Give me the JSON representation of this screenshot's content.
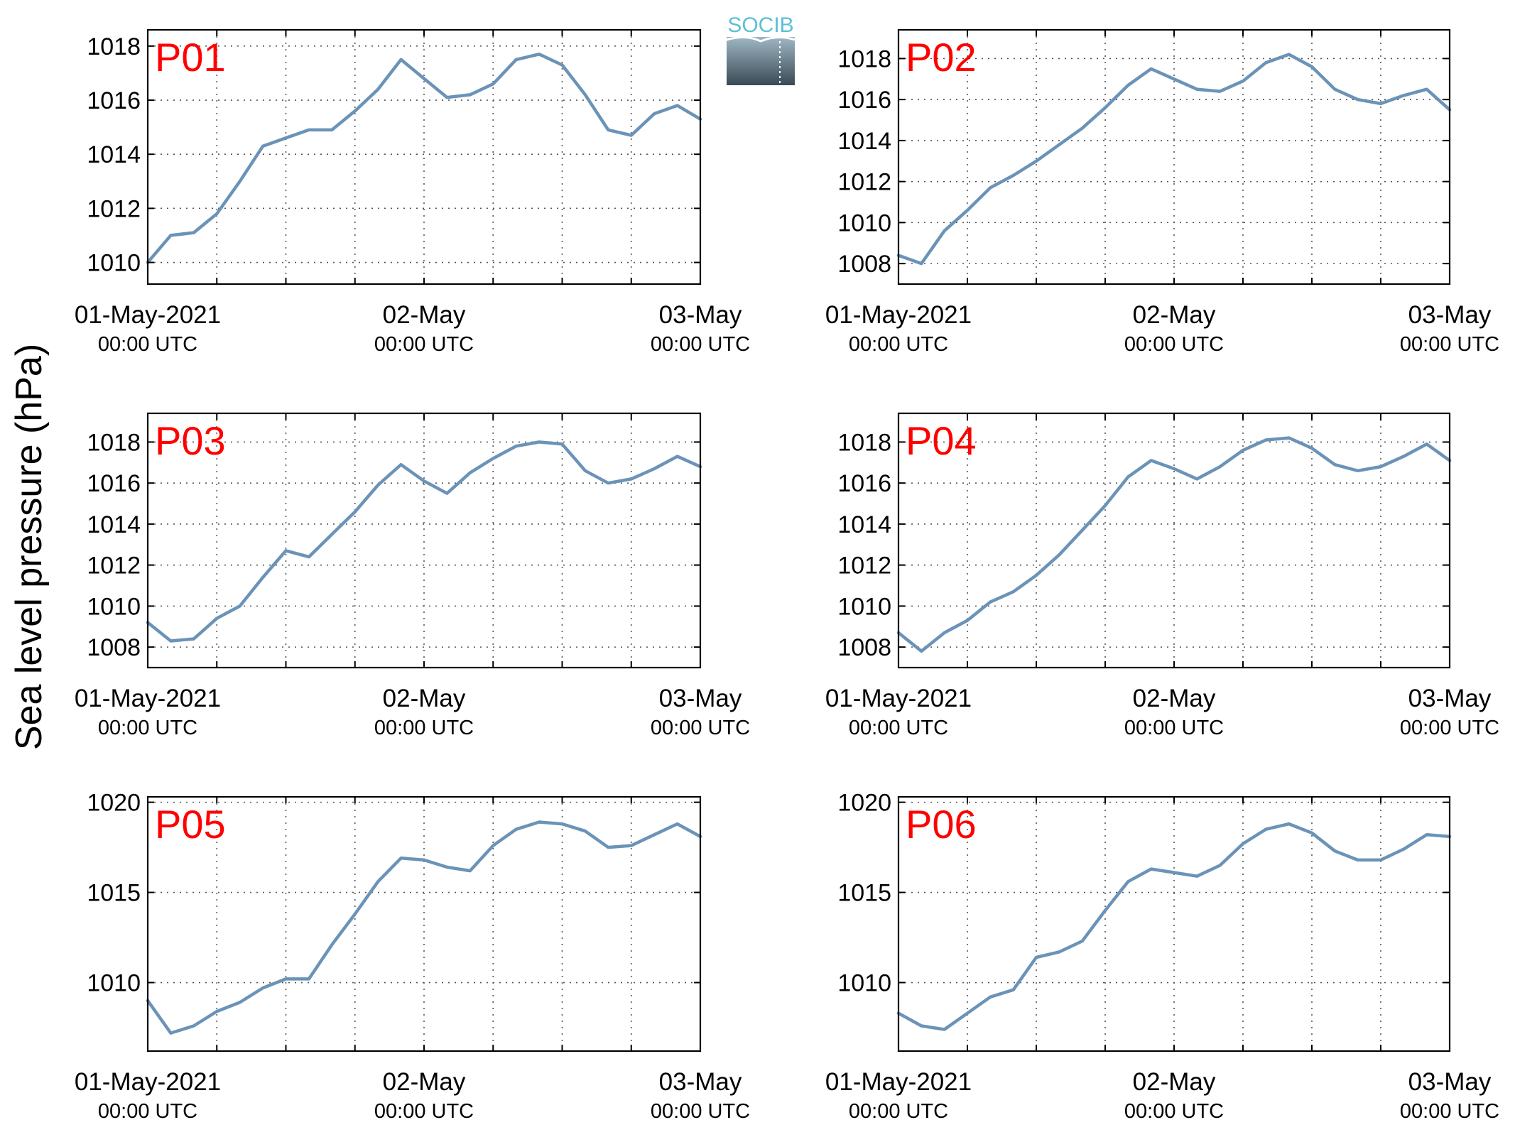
{
  "figure": {
    "ylabel": "Sea level pressure (hPa)",
    "logo_text": "SOCIB",
    "line_color": "#6b93b8",
    "panel_label_color": "#ff0000"
  },
  "x_axis": {
    "ticks": [
      {
        "day": 0,
        "line1": "01-May-2021",
        "line2": "00:00 UTC"
      },
      {
        "day": 1,
        "line1": "02-May",
        "line2": "00:00 UTC"
      },
      {
        "day": 2,
        "line1": "03-May",
        "line2": "00:00 UTC"
      }
    ],
    "grid_step_hours": 6
  },
  "chart_data": [
    {
      "type": "line",
      "title": "P01",
      "xunit": "hours since 01-May-2021 00:00 UTC",
      "ylim": [
        1009.2,
        1018.6
      ],
      "yticks": [
        1010,
        1012,
        1014,
        1016,
        1018
      ],
      "x": [
        0,
        2,
        4,
        6,
        8,
        10,
        12,
        14,
        16,
        18,
        20,
        22,
        24,
        26,
        28,
        30,
        32,
        34,
        36,
        38,
        40,
        42,
        44,
        46,
        48
      ],
      "y": [
        1010.0,
        1011.0,
        1011.1,
        1011.8,
        1013.0,
        1014.3,
        1014.6,
        1014.9,
        1014.9,
        1015.6,
        1016.4,
        1017.5,
        1016.8,
        1016.1,
        1016.2,
        1016.6,
        1017.5,
        1017.7,
        1017.3,
        1016.2,
        1014.9,
        1014.7,
        1015.5,
        1015.8,
        1015.3
      ]
    },
    {
      "type": "line",
      "title": "P02",
      "xunit": "hours since 01-May-2021 00:00 UTC",
      "ylim": [
        1007.0,
        1019.4
      ],
      "yticks": [
        1008,
        1010,
        1012,
        1014,
        1016,
        1018
      ],
      "x": [
        0,
        2,
        4,
        6,
        8,
        10,
        12,
        14,
        16,
        18,
        20,
        22,
        24,
        26,
        28,
        30,
        32,
        34,
        36,
        38,
        40,
        42,
        44,
        46,
        48
      ],
      "y": [
        1008.4,
        1008.0,
        1009.6,
        1010.6,
        1011.7,
        1012.3,
        1013.0,
        1013.8,
        1014.6,
        1015.6,
        1016.7,
        1017.5,
        1017.0,
        1016.5,
        1016.4,
        1016.9,
        1017.8,
        1018.2,
        1017.6,
        1016.5,
        1016.0,
        1015.8,
        1016.2,
        1016.5,
        1015.5
      ]
    },
    {
      "type": "line",
      "title": "P03",
      "xunit": "hours since 01-May-2021 00:00 UTC",
      "ylim": [
        1007.0,
        1019.4
      ],
      "yticks": [
        1008,
        1010,
        1012,
        1014,
        1016,
        1018
      ],
      "x": [
        0,
        2,
        4,
        6,
        8,
        10,
        12,
        14,
        16,
        18,
        20,
        22,
        24,
        26,
        28,
        30,
        32,
        34,
        36,
        38,
        40,
        42,
        44,
        46,
        48
      ],
      "y": [
        1009.2,
        1008.3,
        1008.4,
        1009.4,
        1010.0,
        1011.4,
        1012.7,
        1012.4,
        1013.5,
        1014.6,
        1015.9,
        1016.9,
        1016.1,
        1015.5,
        1016.5,
        1017.2,
        1017.8,
        1018.0,
        1017.9,
        1016.6,
        1016.0,
        1016.2,
        1016.7,
        1017.3,
        1016.8
      ]
    },
    {
      "type": "line",
      "title": "P04",
      "xunit": "hours since 01-May-2021 00:00 UTC",
      "ylim": [
        1007.0,
        1019.4
      ],
      "yticks": [
        1008,
        1010,
        1012,
        1014,
        1016,
        1018
      ],
      "x": [
        0,
        2,
        4,
        6,
        8,
        10,
        12,
        14,
        16,
        18,
        20,
        22,
        24,
        26,
        28,
        30,
        32,
        34,
        36,
        38,
        40,
        42,
        44,
        46,
        48
      ],
      "y": [
        1008.7,
        1007.8,
        1008.7,
        1009.3,
        1010.2,
        1010.7,
        1011.5,
        1012.5,
        1013.7,
        1014.9,
        1016.3,
        1017.1,
        1016.7,
        1016.2,
        1016.8,
        1017.6,
        1018.1,
        1018.2,
        1017.7,
        1016.9,
        1016.6,
        1016.8,
        1017.3,
        1017.9,
        1017.1
      ]
    },
    {
      "type": "line",
      "title": "P05",
      "xunit": "hours since 01-May-2021 00:00 UTC",
      "ylim": [
        1006.2,
        1020.3
      ],
      "yticks": [
        1010,
        1015,
        1020
      ],
      "x": [
        0,
        2,
        4,
        6,
        8,
        10,
        12,
        14,
        16,
        18,
        20,
        22,
        24,
        26,
        28,
        30,
        32,
        34,
        36,
        38,
        40,
        42,
        44,
        46,
        48
      ],
      "y": [
        1009.0,
        1007.2,
        1007.6,
        1008.4,
        1008.9,
        1009.7,
        1010.2,
        1010.2,
        1012.1,
        1013.8,
        1015.6,
        1016.9,
        1016.8,
        1016.4,
        1016.2,
        1017.6,
        1018.5,
        1018.9,
        1018.8,
        1018.4,
        1017.5,
        1017.6,
        1018.2,
        1018.8,
        1018.1
      ]
    },
    {
      "type": "line",
      "title": "P06",
      "xunit": "hours since 01-May-2021 00:00 UTC",
      "ylim": [
        1006.2,
        1020.3
      ],
      "yticks": [
        1010,
        1015,
        1020
      ],
      "x": [
        0,
        2,
        4,
        6,
        8,
        10,
        12,
        14,
        16,
        18,
        20,
        22,
        24,
        26,
        28,
        30,
        32,
        34,
        36,
        38,
        40,
        42,
        44,
        46,
        48
      ],
      "y": [
        1008.3,
        1007.6,
        1007.4,
        1008.3,
        1009.2,
        1009.6,
        1011.4,
        1011.7,
        1012.3,
        1014.0,
        1015.6,
        1016.3,
        1016.1,
        1015.9,
        1016.5,
        1017.7,
        1018.5,
        1018.8,
        1018.3,
        1017.3,
        1016.8,
        1016.8,
        1017.4,
        1018.2,
        1018.1
      ]
    }
  ]
}
